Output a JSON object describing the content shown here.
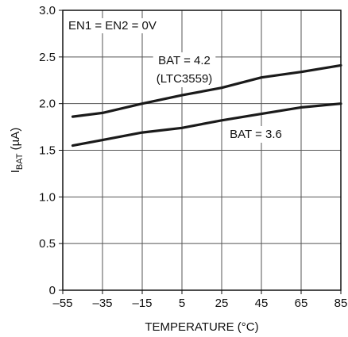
{
  "chart_data": {
    "type": "line",
    "xlabel": "TEMPERATURE (°C)",
    "ylabel": "IBAT (µA)",
    "ylabel_main": "I",
    "ylabel_sub": "BAT",
    "ylabel_unit": " (µA)",
    "xlim": [
      -55,
      85
    ],
    "ylim": [
      0,
      3.0
    ],
    "xticks": [
      -55,
      -35,
      -15,
      5,
      25,
      45,
      65,
      85
    ],
    "xtick_labels": [
      "–55",
      "–35",
      "–15",
      "5",
      "25",
      "45",
      "65",
      "85"
    ],
    "yticks": [
      0,
      0.5,
      1.0,
      1.5,
      2.0,
      2.5,
      3.0
    ],
    "ytick_labels": [
      "0",
      "0.5",
      "1.0",
      "1.5",
      "2.0",
      "2.5",
      "3.0"
    ],
    "grid": true,
    "line_color": "#1a1a1a",
    "condition_text": "EN1 = EN2 = 0V",
    "series": [
      {
        "name": "BAT = 4.2 (LTC3559)",
        "label_line1": "BAT = 4.2",
        "label_line2": "(LTC3559)",
        "x": [
          -50,
          -35,
          -15,
          5,
          25,
          45,
          65,
          85
        ],
        "y": [
          1.86,
          1.9,
          2.0,
          2.09,
          2.17,
          2.28,
          2.34,
          2.41
        ]
      },
      {
        "name": "BAT = 3.6",
        "label_line1": "BAT = 3.6",
        "x": [
          -50,
          -35,
          -15,
          5,
          25,
          45,
          65,
          85
        ],
        "y": [
          1.55,
          1.61,
          1.69,
          1.74,
          1.82,
          1.89,
          1.96,
          2.0
        ]
      }
    ]
  }
}
